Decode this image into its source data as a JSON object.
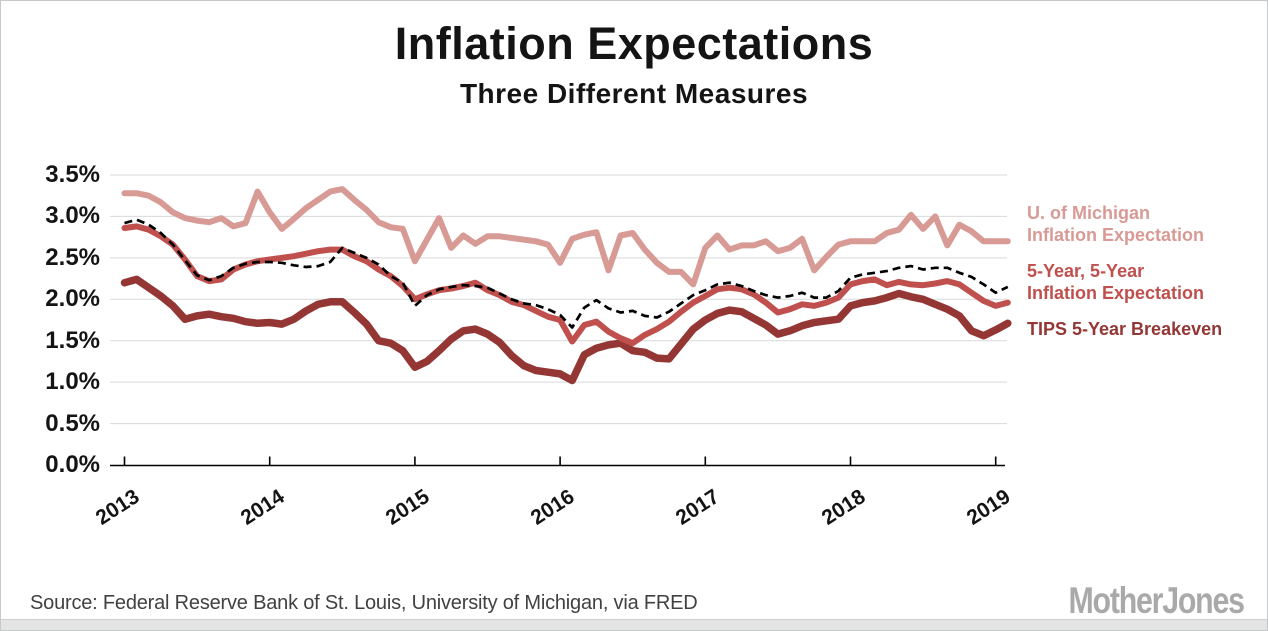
{
  "page": {
    "title": "Inflation Expectations",
    "subtitle": "Three Different Measures",
    "footer_source": "Source: Federal Reserve Bank of St. Louis, University of Michigan, via FRED",
    "brand": "MotherJones"
  },
  "chart_data": {
    "type": "line",
    "title": "Inflation Expectations",
    "subtitle": "Three Different Measures",
    "x_unit": "month",
    "x_start": "2013-01",
    "x_end": "2019-02",
    "x_tick_labels": [
      "2013",
      "2014",
      "2015",
      "2016",
      "2017",
      "2018",
      "2019"
    ],
    "y_tick_labels": [
      "3.5%",
      "3.0%",
      "2.5%",
      "2.0%",
      "1.5%",
      "1.0%",
      "0.5%",
      "0.0%"
    ],
    "ylim": [
      0,
      3.5
    ],
    "y_gridline_step": 0.5,
    "grid": "horizontal",
    "legend_position": "right",
    "colors": {
      "michigan": "#D89A95",
      "five_year_five_year": "#C0504D",
      "tips_breakeven": "#943634",
      "dashed": "#000000",
      "gridline": "#D9D9D9",
      "axis": "#000000"
    },
    "series": [
      {
        "name": "U. of Michigan Inflation Expectation",
        "legend_lines": [
          "U. of Michigan",
          "Inflation Expectation"
        ],
        "color": "#D89A95",
        "style": "solid",
        "values": [
          3.28,
          3.28,
          3.25,
          3.17,
          3.05,
          2.98,
          2.95,
          2.93,
          2.98,
          2.88,
          2.92,
          3.3,
          3.05,
          2.85,
          2.97,
          3.1,
          3.2,
          3.3,
          3.33,
          3.2,
          3.08,
          2.93,
          2.87,
          2.85,
          2.46,
          2.72,
          2.98,
          2.62,
          2.77,
          2.67,
          2.76,
          2.76,
          2.74,
          2.72,
          2.7,
          2.66,
          2.44,
          2.73,
          2.78,
          2.81,
          2.35,
          2.77,
          2.8,
          2.6,
          2.44,
          2.33,
          2.33,
          2.18,
          2.62,
          2.77,
          2.6,
          2.65,
          2.65,
          2.7,
          2.58,
          2.62,
          2.73,
          2.35,
          2.51,
          2.66,
          2.7,
          2.7,
          2.7,
          2.8,
          2.84,
          3.02,
          2.85,
          3.0,
          2.65,
          2.9,
          2.82,
          2.7,
          2.7,
          2.7
        ]
      },
      {
        "name": "5-Year, 5-Year Inflation Expectation",
        "legend_lines": [
          "5-Year, 5-Year",
          "Inflation Expectation"
        ],
        "color": "#C0504D",
        "style": "solid",
        "values": [
          2.86,
          2.88,
          2.84,
          2.76,
          2.66,
          2.48,
          2.28,
          2.22,
          2.24,
          2.36,
          2.42,
          2.46,
          2.48,
          2.5,
          2.52,
          2.55,
          2.58,
          2.6,
          2.6,
          2.52,
          2.46,
          2.36,
          2.28,
          2.16,
          2.0,
          2.06,
          2.11,
          2.13,
          2.16,
          2.2,
          2.11,
          2.05,
          1.97,
          1.93,
          1.86,
          1.79,
          1.75,
          1.49,
          1.69,
          1.73,
          1.61,
          1.53,
          1.47,
          1.57,
          1.64,
          1.73,
          1.85,
          1.96,
          2.04,
          2.12,
          2.14,
          2.12,
          2.06,
          1.96,
          1.84,
          1.88,
          1.94,
          1.92,
          1.96,
          2.02,
          2.18,
          2.22,
          2.24,
          2.17,
          2.21,
          2.18,
          2.17,
          2.19,
          2.22,
          2.18,
          2.08,
          1.98,
          1.92,
          1.96
        ]
      },
      {
        "name": "TIPS 5-Year Breakeven",
        "legend_lines": [
          "TIPS 5-Year Breakeven"
        ],
        "color": "#943634",
        "style": "solid",
        "values": [
          2.2,
          2.24,
          2.14,
          2.04,
          1.92,
          1.76,
          1.8,
          1.82,
          1.79,
          1.77,
          1.73,
          1.71,
          1.72,
          1.7,
          1.76,
          1.86,
          1.94,
          1.97,
          1.97,
          1.84,
          1.7,
          1.5,
          1.47,
          1.38,
          1.18,
          1.25,
          1.38,
          1.52,
          1.62,
          1.64,
          1.58,
          1.48,
          1.32,
          1.2,
          1.14,
          1.12,
          1.1,
          1.02,
          1.33,
          1.41,
          1.45,
          1.47,
          1.38,
          1.36,
          1.29,
          1.28,
          1.46,
          1.64,
          1.75,
          1.83,
          1.87,
          1.85,
          1.77,
          1.69,
          1.58,
          1.62,
          1.68,
          1.72,
          1.74,
          1.76,
          1.92,
          1.96,
          1.98,
          2.02,
          2.07,
          2.03,
          2.0,
          1.94,
          1.88,
          1.8,
          1.62,
          1.56,
          1.63,
          1.71
        ]
      },
      {
        "name": "unlabeled-dashed-series",
        "legend_lines": [],
        "color": "#000000",
        "style": "dashed",
        "values": [
          2.92,
          2.96,
          2.9,
          2.8,
          2.66,
          2.47,
          2.29,
          2.23,
          2.28,
          2.38,
          2.43,
          2.45,
          2.45,
          2.44,
          2.41,
          2.39,
          2.4,
          2.45,
          2.62,
          2.56,
          2.5,
          2.42,
          2.28,
          2.2,
          1.92,
          2.05,
          2.12,
          2.15,
          2.17,
          2.16,
          2.14,
          2.07,
          2.0,
          1.95,
          1.93,
          1.88,
          1.81,
          1.66,
          1.9,
          1.99,
          1.89,
          1.84,
          1.86,
          1.8,
          1.78,
          1.85,
          1.95,
          2.05,
          2.11,
          2.18,
          2.2,
          2.16,
          2.1,
          2.05,
          2.02,
          2.04,
          2.08,
          2.02,
          2.02,
          2.1,
          2.26,
          2.3,
          2.32,
          2.34,
          2.38,
          2.4,
          2.36,
          2.38,
          2.38,
          2.32,
          2.27,
          2.18,
          2.08,
          2.15
        ]
      }
    ]
  }
}
